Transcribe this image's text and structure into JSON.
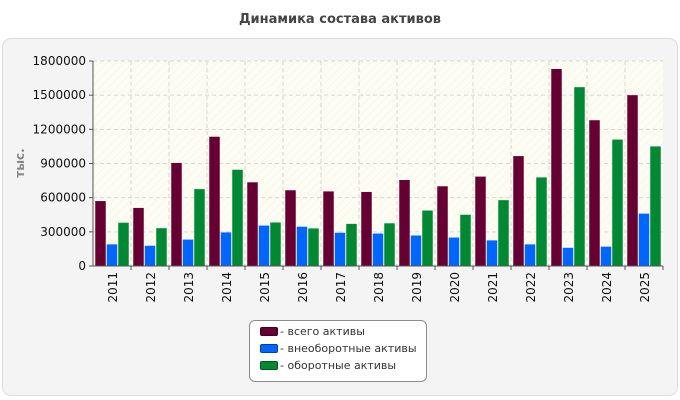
{
  "page": {
    "title": "Динамика состава активов"
  },
  "colors": {
    "total": "#660033",
    "noncurrent": "#0066ff",
    "current": "#008833",
    "plot_bg": "#fcfcf2",
    "grid": "#d8d8d8"
  },
  "chart_data": {
    "type": "bar",
    "title": "Динамика состава активов",
    "xlabel": "",
    "ylabel": "тыс.",
    "ylim": [
      0,
      1800000
    ],
    "yticks": [
      "0",
      "300000",
      "600000",
      "900000",
      "1200000",
      "1500000",
      "1800000"
    ],
    "grid": true,
    "legend_position": "bottom",
    "categories": [
      "2011",
      "2012",
      "2013",
      "2014",
      "2015",
      "2016",
      "2017",
      "2018",
      "2019",
      "2020",
      "2021",
      "2022",
      "2023",
      "2024",
      "2025"
    ],
    "series": [
      {
        "name": "- всего активы",
        "color": "#660033",
        "values": [
          570000,
          510000,
          905000,
          1135000,
          735000,
          665000,
          655000,
          650000,
          755000,
          700000,
          785000,
          965000,
          1730000,
          1280000,
          1500000
        ]
      },
      {
        "name": "- внеоборотные активы",
        "color": "#0066ff",
        "values": [
          190000,
          178000,
          232000,
          295000,
          355000,
          345000,
          292000,
          285000,
          268000,
          250000,
          225000,
          190000,
          160000,
          170000,
          460000
        ]
      },
      {
        "name": "- оборотные активы",
        "color": "#008833",
        "values": [
          380000,
          332000,
          675000,
          845000,
          382000,
          330000,
          370000,
          375000,
          487000,
          450000,
          578000,
          778000,
          1570000,
          1110000,
          1050000
        ]
      }
    ]
  }
}
